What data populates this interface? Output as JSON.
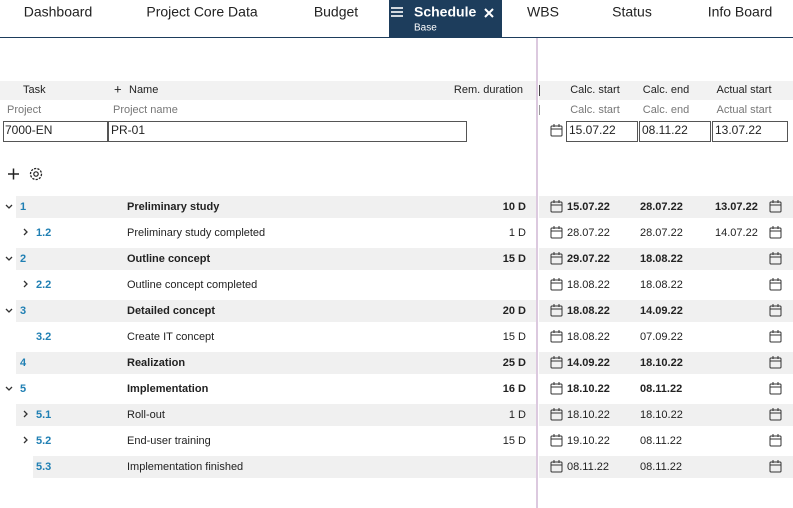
{
  "tabs": [
    {
      "label": "Dashboard"
    },
    {
      "label": "Project Core Data"
    },
    {
      "label": "Budget"
    },
    {
      "label": "Schedule",
      "sublabel": "Base",
      "active": true
    },
    {
      "label": "WBS"
    },
    {
      "label": "Status"
    },
    {
      "label": "Info Board"
    }
  ],
  "table": {
    "columns": {
      "task": "Task",
      "name": "Name",
      "duration": "Rem. duration",
      "calc_start": "Calc. start",
      "calc_end": "Calc. end",
      "actual_start": "Actual start"
    },
    "filters": {
      "task": "Project",
      "name": "Project name",
      "calc_start": "Calc. start",
      "calc_end": "Calc. end",
      "actual_start": "Actual start"
    },
    "project": {
      "id": "7000-EN",
      "name": "PR-01",
      "calc_start": "15.07.22",
      "calc_end": "08.11.22",
      "actual_start": "13.07.22"
    },
    "rows": [
      {
        "id": "1",
        "level": 1,
        "expander": "expanded",
        "name": "Preliminary study",
        "duration": "10 D",
        "calc_start": "15.07.22",
        "calc_end": "28.07.22",
        "actual_start": "13.07.22"
      },
      {
        "id": "1.2",
        "level": 2,
        "expander": "collapsed",
        "name": "Preliminary study completed",
        "duration": "1 D",
        "calc_start": "28.07.22",
        "calc_end": "28.07.22",
        "actual_start": "14.07.22"
      },
      {
        "id": "2",
        "level": 1,
        "expander": "expanded",
        "name": "Outline concept",
        "duration": "15 D",
        "calc_start": "29.07.22",
        "calc_end": "18.08.22"
      },
      {
        "id": "2.2",
        "level": 2,
        "expander": "collapsed",
        "name": "Outline concept completed",
        "calc_start": "18.08.22",
        "calc_end": "18.08.22"
      },
      {
        "id": "3",
        "level": 1,
        "expander": "expanded",
        "name": "Detailed concept",
        "duration": "20 D",
        "calc_start": "18.08.22",
        "calc_end": "14.09.22"
      },
      {
        "id": "3.2",
        "level": 2,
        "name": "Create IT concept",
        "duration": "15 D",
        "calc_start": "18.08.22",
        "calc_end": "07.09.22"
      },
      {
        "id": "4",
        "level": 1,
        "name": "Realization",
        "duration": "25 D",
        "calc_start": "14.09.22",
        "calc_end": "18.10.22"
      },
      {
        "id": "5",
        "level": 1,
        "expander": "expanded",
        "name": "Implementation",
        "duration": "16 D",
        "calc_start": "18.10.22",
        "calc_end": "08.11.22"
      },
      {
        "id": "5.1",
        "level": 2,
        "expander": "collapsed",
        "name": "Roll-out",
        "duration": "1 D",
        "calc_start": "18.10.22",
        "calc_end": "18.10.22"
      },
      {
        "id": "5.2",
        "level": 2,
        "expander": "collapsed",
        "name": "End-user training",
        "duration": "15 D",
        "calc_start": "19.10.22",
        "calc_end": "08.11.22"
      },
      {
        "id": "5.3",
        "level": 2,
        "name": "Implementation finished",
        "calc_start": "08.11.22",
        "calc_end": "08.11.22"
      }
    ]
  }
}
